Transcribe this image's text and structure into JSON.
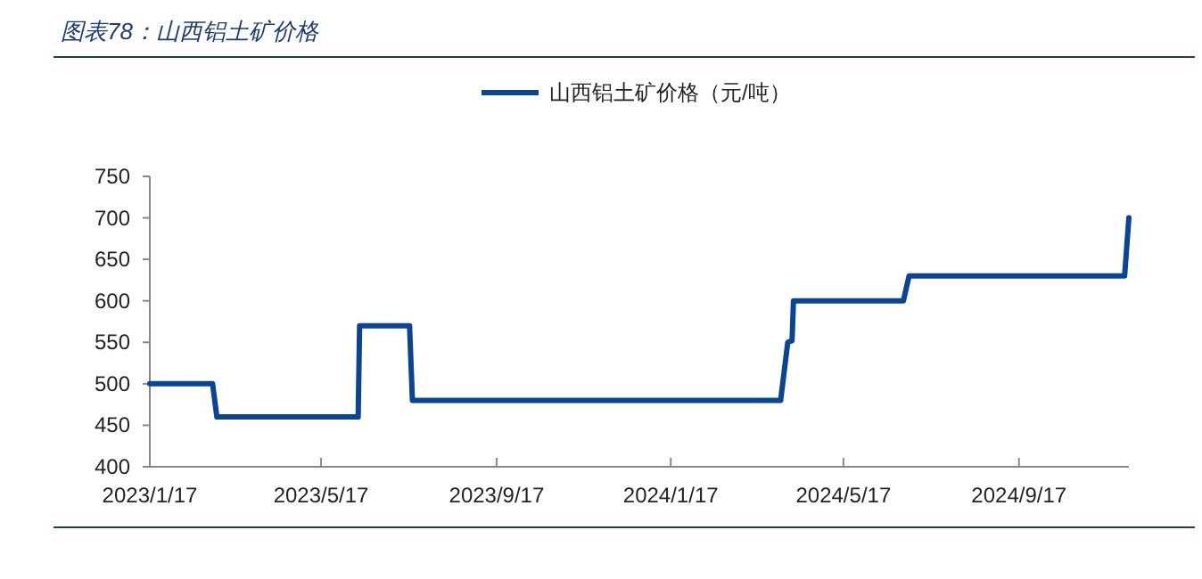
{
  "chart_data": {
    "type": "line",
    "title": "图表78：山西铝土矿价格",
    "x": [
      "2023-01-17",
      "2023-03-02",
      "2023-03-05",
      "2023-06-12",
      "2023-06-13",
      "2023-07-18",
      "2023-07-20",
      "2024-04-03",
      "2024-04-08",
      "2024-04-11",
      "2024-04-12",
      "2024-06-28",
      "2024-07-02",
      "2024-11-30",
      "2024-12-03"
    ],
    "series": [
      {
        "name": "山西铝土矿价格（元/吨）",
        "color": "#0a4595",
        "values": [
          500,
          500,
          460,
          460,
          570,
          570,
          480,
          480,
          550,
          552,
          600,
          600,
          630,
          630,
          700
        ]
      }
    ],
    "xlim": [
      "2023-01-17",
      "2024-12-03"
    ],
    "xticks": [
      {
        "value": "2023-01-17",
        "label": "2023/1/17"
      },
      {
        "value": "2023-05-17",
        "label": "2023/5/17"
      },
      {
        "value": "2023-09-17",
        "label": "2023/9/17"
      },
      {
        "value": "2024-01-17",
        "label": "2024/1/17"
      },
      {
        "value": "2024-05-17",
        "label": "2024/5/17"
      },
      {
        "value": "2024-09-17",
        "label": "2024/9/17"
      }
    ],
    "ylim": [
      400,
      750
    ],
    "yticks": [
      400,
      450,
      500,
      550,
      600,
      650,
      700,
      750
    ],
    "legend": "top",
    "grid": false,
    "marker": "none",
    "line_style": "solid"
  }
}
